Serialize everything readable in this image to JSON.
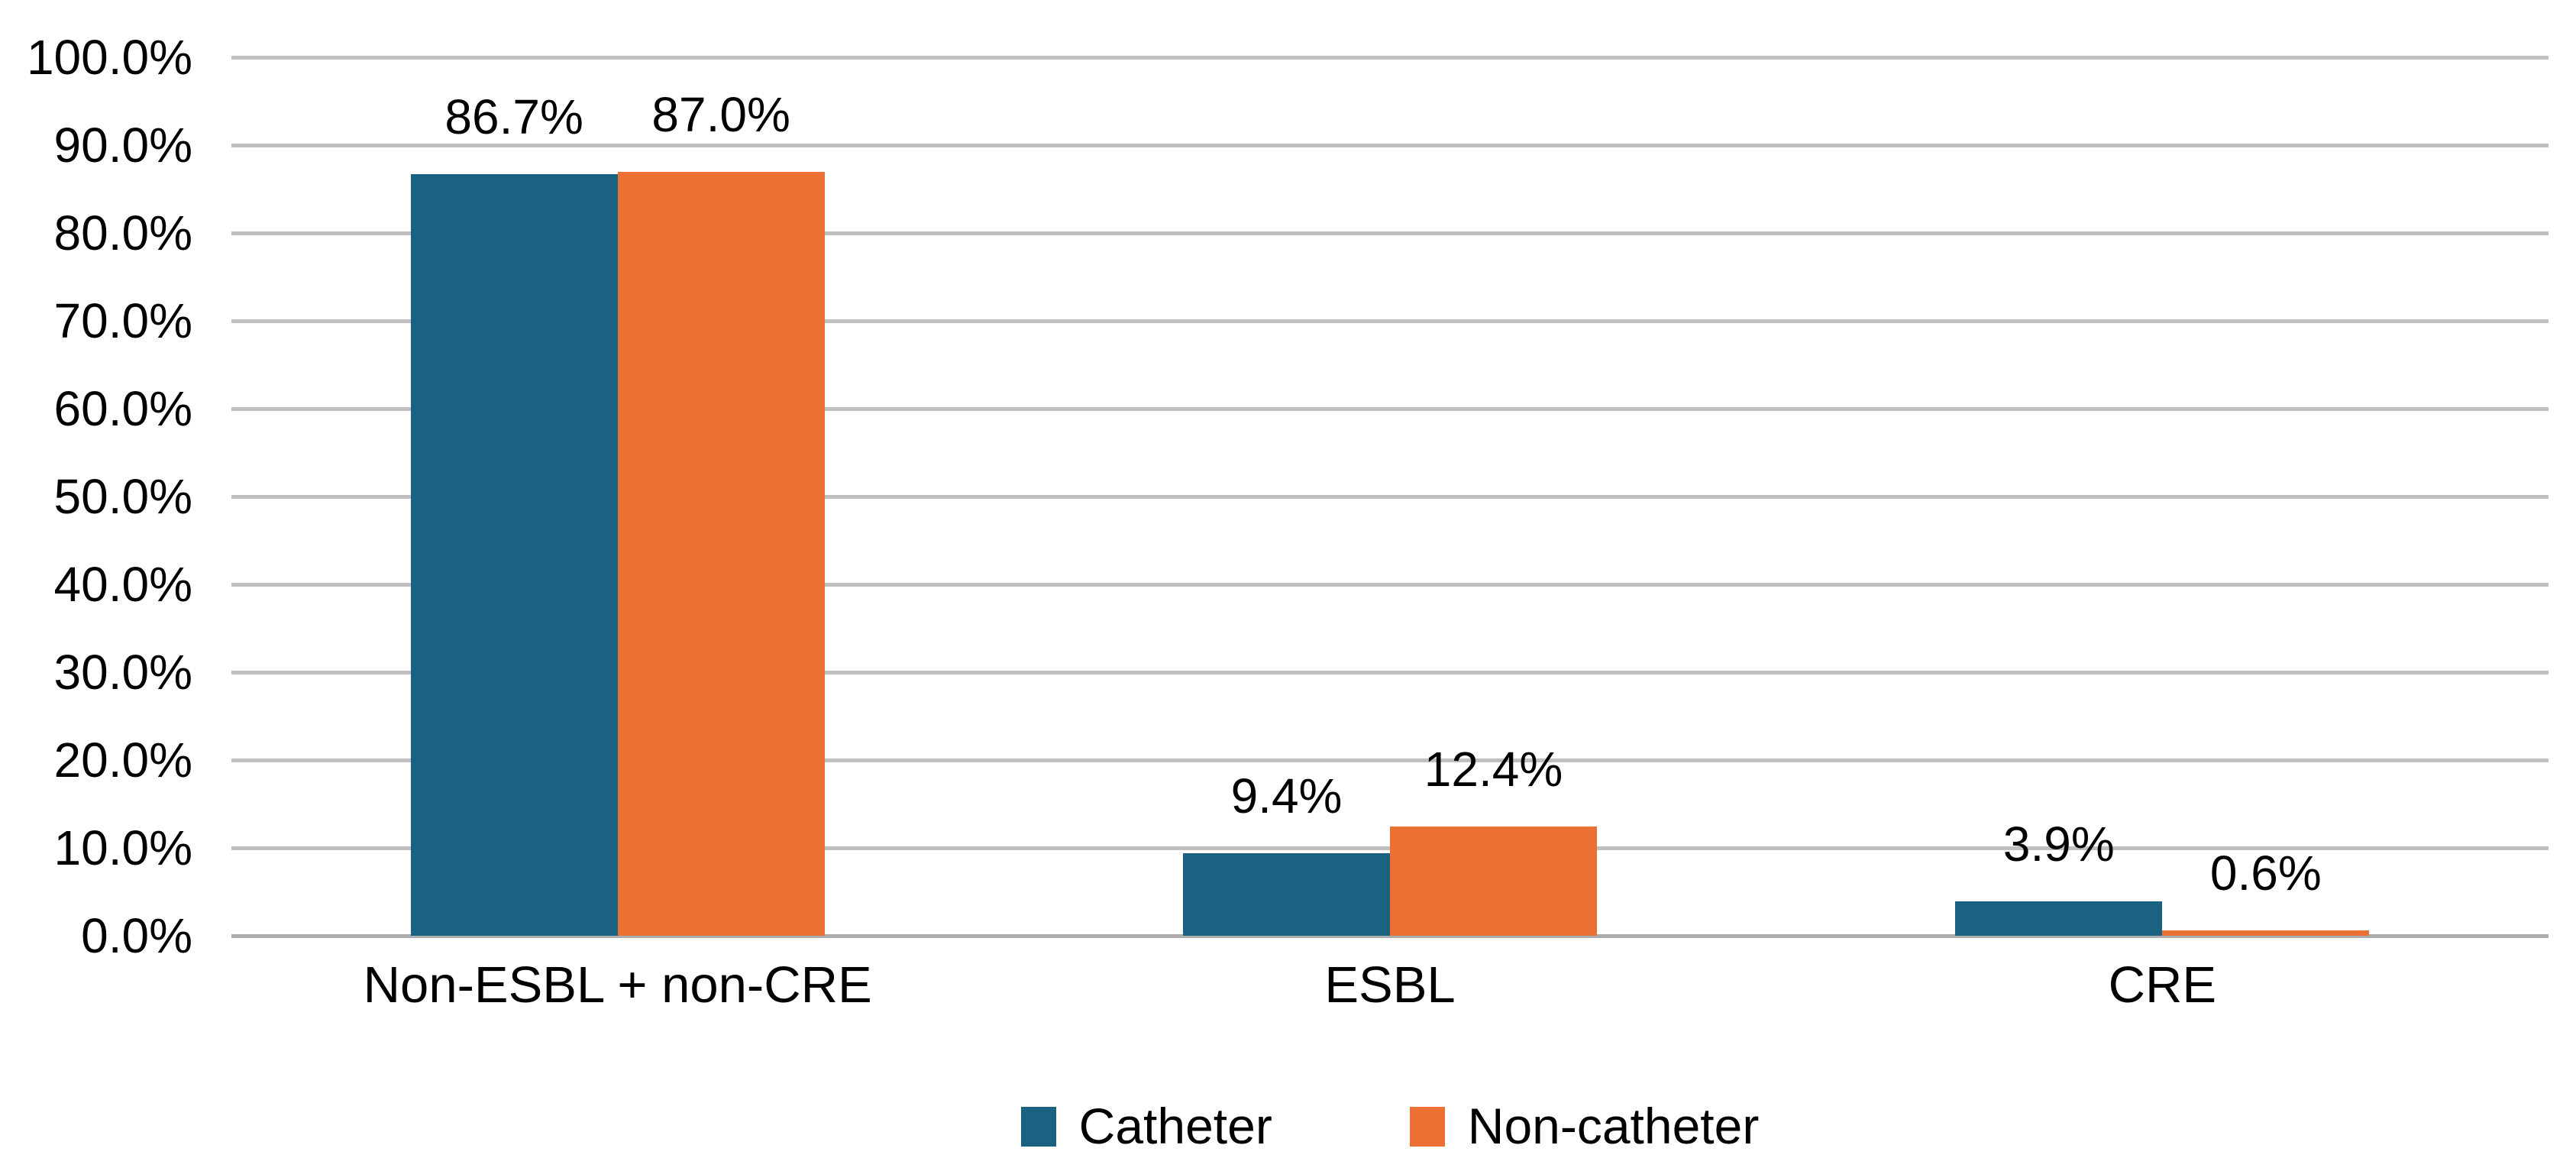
{
  "chart_data": {
    "type": "bar",
    "title": "",
    "categories": [
      "Non-ESBL + non-CRE",
      "ESBL",
      "CRE"
    ],
    "series": [
      {
        "name": "Catheter",
        "color": "#1A6282",
        "values": [
          86.7,
          9.4,
          3.9
        ],
        "data_labels": [
          "86.7%",
          "9.4%",
          "3.9%"
        ]
      },
      {
        "name": "Non-catheter",
        "color": "#EC7033",
        "values": [
          87.0,
          12.4,
          0.6
        ],
        "data_labels": [
          "87.0%",
          "12.4%",
          "0.6%"
        ]
      }
    ],
    "y_axis": {
      "min": 0,
      "max": 100,
      "step": 10,
      "tick_labels": [
        "0.0%",
        "10.0%",
        "20.0%",
        "30.0%",
        "40.0%",
        "50.0%",
        "60.0%",
        "70.0%",
        "80.0%",
        "90.0%",
        "100.0%"
      ]
    },
    "grid": true,
    "legend_position": "bottom",
    "colors": {
      "gridline": "#BFBFBF",
      "axis_line": "#ACACAC",
      "text": "#000000",
      "background": "#FFFFFF"
    }
  }
}
